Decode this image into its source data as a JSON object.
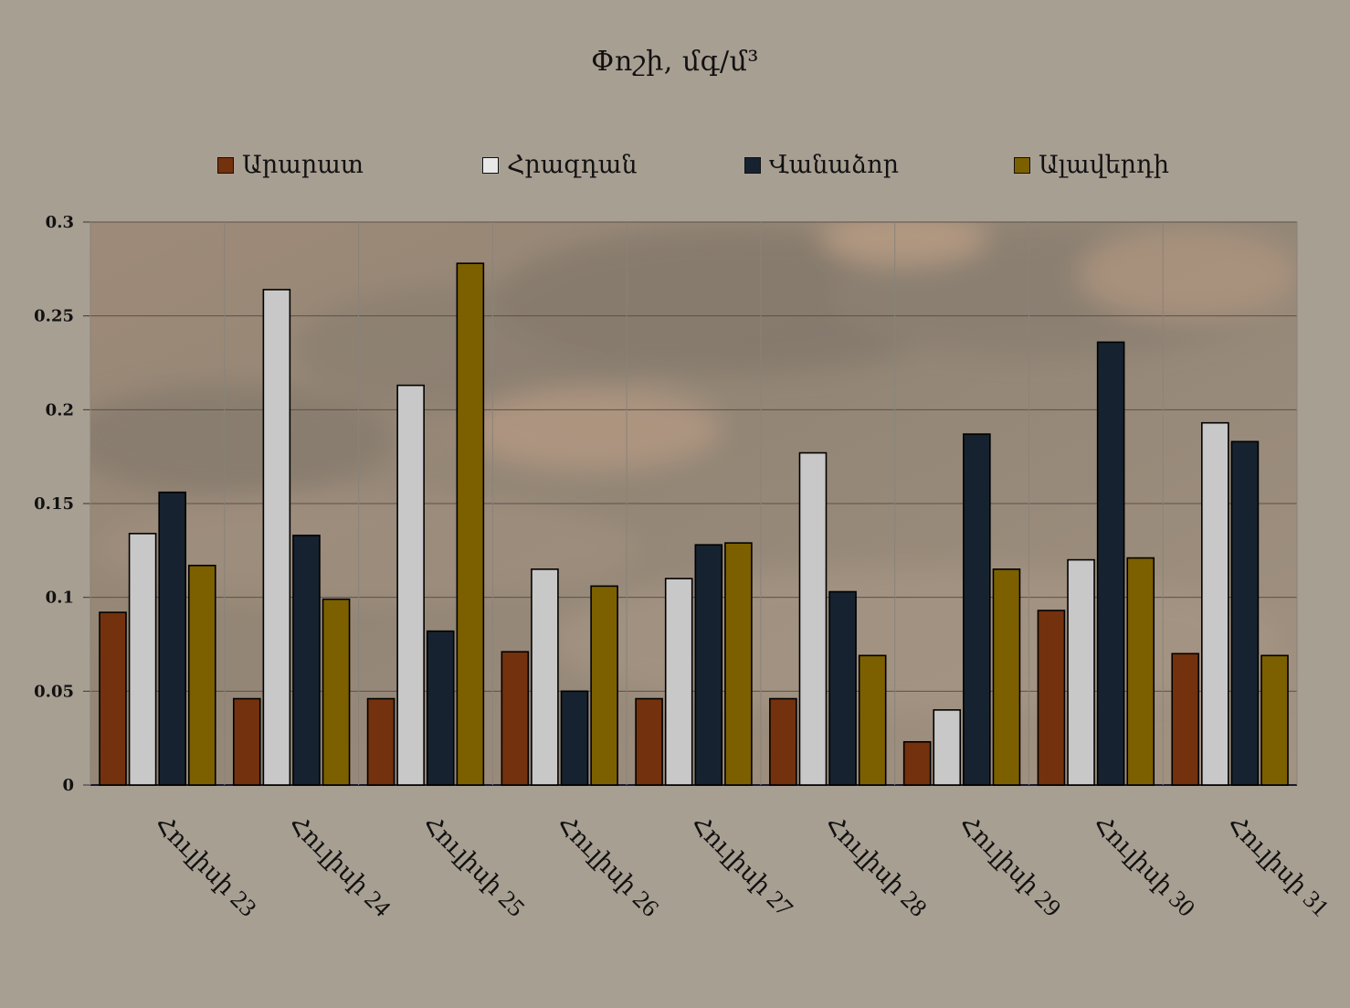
{
  "chart_data": {
    "type": "bar",
    "title": "Փոշի, մգ/մ³",
    "categories": [
      "Հուլիսի 23",
      "Հուլիսի 24",
      "Հուլիսի 25",
      "Հուլիսի 26",
      "Հուլիսի 27",
      "Հուլիսի 28",
      "Հուլիսի 29",
      "Հուլիսի 30",
      "Հուլիսի 31"
    ],
    "series": [
      {
        "name": "Արարատ",
        "color": "#74310d",
        "values": [
          0.092,
          0.046,
          0.046,
          0.071,
          0.046,
          0.046,
          0.023,
          0.093,
          0.07
        ]
      },
      {
        "name": "Հրազդան",
        "color": "#c8c8c8",
        "values": [
          0.134,
          0.264,
          0.213,
          0.115,
          0.11,
          0.177,
          0.04,
          0.12,
          0.193
        ]
      },
      {
        "name": "Վանաձոր",
        "color": "#16222f",
        "values": [
          0.156,
          0.133,
          0.082,
          0.05,
          0.128,
          0.103,
          0.187,
          0.236,
          0.183
        ]
      },
      {
        "name": "Ալավերդի",
        "color": "#7c6000",
        "values": [
          0.117,
          0.099,
          0.278,
          0.106,
          0.129,
          0.069,
          0.115,
          0.121,
          0.069
        ]
      }
    ],
    "yticks": [
      "0",
      "0.05",
      "0.1",
      "0.15",
      "0.2",
      "0.25",
      "0.3"
    ],
    "ylim": [
      0,
      0.3
    ],
    "legend_position": "top",
    "grid": true
  }
}
